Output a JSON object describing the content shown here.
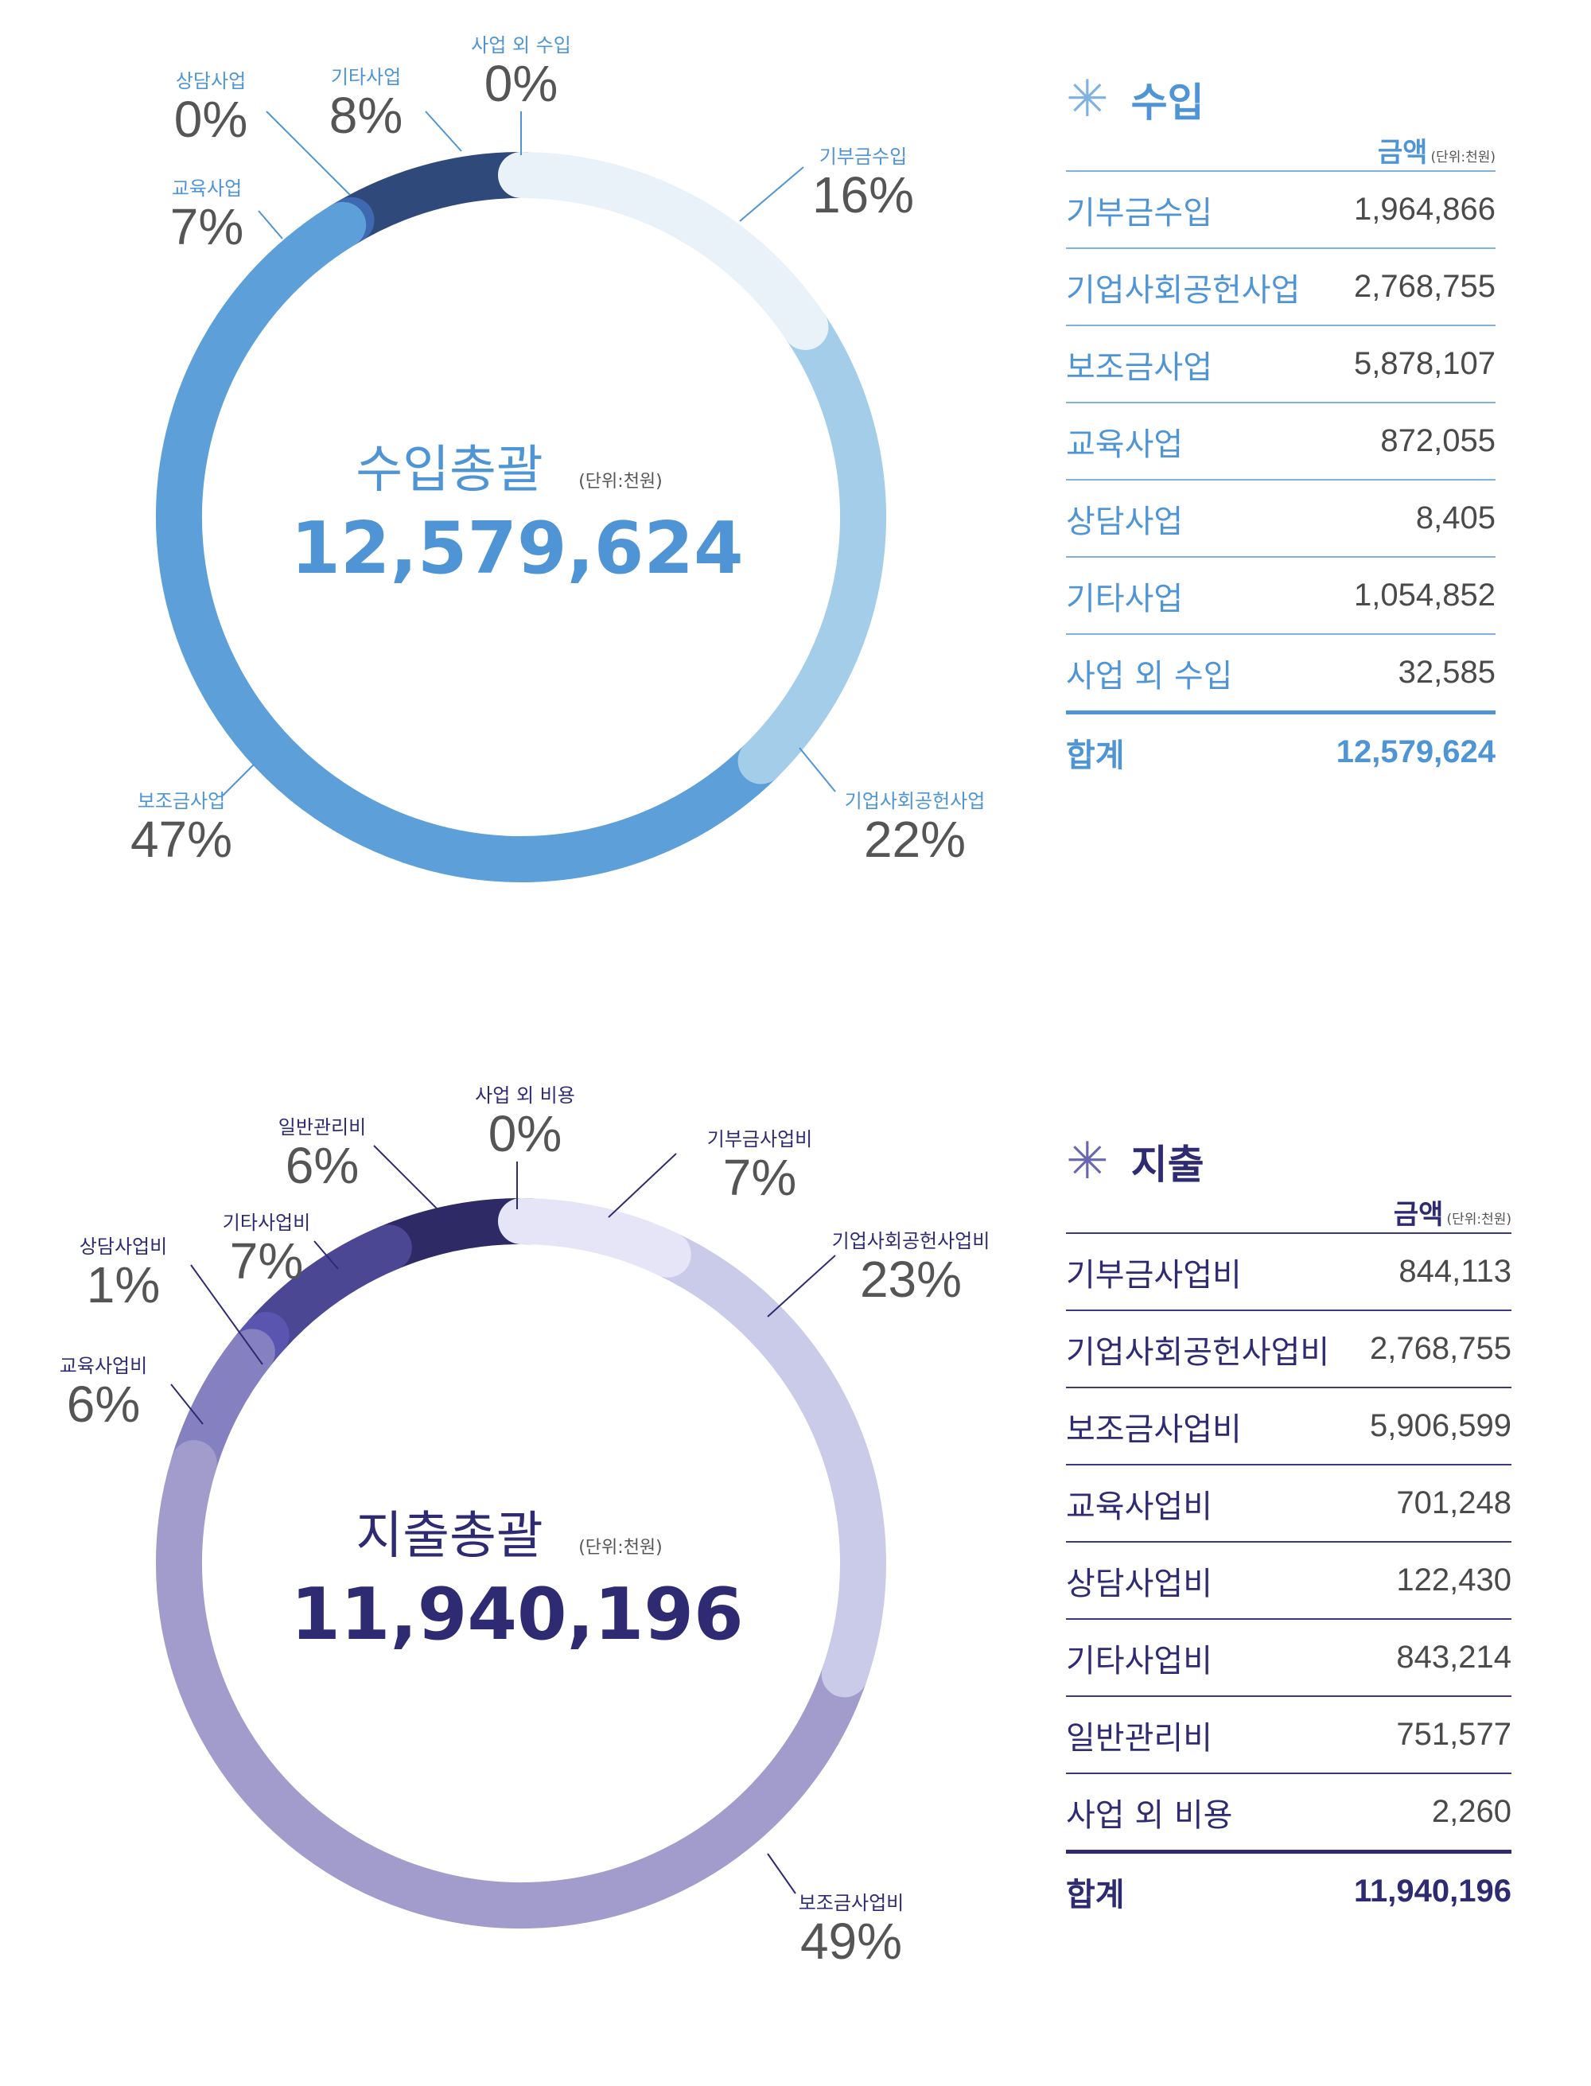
{
  "colors": {
    "income_accent": "#4f95d6",
    "expense_accent": "#2f2b73",
    "label_gray": "#555555"
  },
  "income": {
    "center_title": "수입총괄",
    "center_unit": "(단위:천원)",
    "center_total": "12,579,624",
    "table": {
      "title": "수입",
      "star_icon": "✳",
      "amount_header": "금액",
      "unit": "(단위:천원)",
      "rows": [
        {
          "label": "기부금수입",
          "value": "1,964,866"
        },
        {
          "label": "기업사회공헌사업",
          "value": "2,768,755"
        },
        {
          "label": "보조금사업",
          "value": "5,878,107"
        },
        {
          "label": "교육사업",
          "value": "872,055"
        },
        {
          "label": "상담사업",
          "value": "8,405"
        },
        {
          "label": "기타사업",
          "value": "1,054,852"
        },
        {
          "label": "사업 외 수입",
          "value": "32,585"
        }
      ],
      "total_label": "합계",
      "total_value": "12,579,624"
    }
  },
  "expense": {
    "center_title": "지출총괄",
    "center_unit": "(단위:천원)",
    "center_total": "11,940,196",
    "table": {
      "title": "지출",
      "star_icon": "✳",
      "amount_header": "금액",
      "unit": "(단위:천원)",
      "rows": [
        {
          "label": "기부금사업비",
          "value": "844,113"
        },
        {
          "label": "기업사회공헌사업비",
          "value": "2,768,755"
        },
        {
          "label": "보조금사업비",
          "value": "5,906,599"
        },
        {
          "label": "교육사업비",
          "value": "701,248"
        },
        {
          "label": "상담사업비",
          "value": "122,430"
        },
        {
          "label": "기타사업비",
          "value": "843,214"
        },
        {
          "label": "일반관리비",
          "value": "751,577"
        },
        {
          "label": "사업 외 비용",
          "value": "2,260"
        }
      ],
      "total_label": "합계",
      "total_value": "11,940,196"
    }
  },
  "chart_data": [
    {
      "type": "pie",
      "donut": true,
      "title": "수입총괄",
      "unit": "(단위:천원)",
      "total": 12579624,
      "categories": [
        "기부금수입",
        "기업사회공헌사업",
        "보조금사업",
        "교육사업",
        "상담사업",
        "기타사업",
        "사업 외 수입"
      ],
      "values": [
        1964866,
        2768755,
        5878107,
        872055,
        8405,
        1054852,
        32585
      ],
      "percent_labels": [
        "16%",
        "22%",
        "47%",
        "7%",
        "0%",
        "8%",
        "0%"
      ],
      "colors": [
        "#e9f2f9",
        "#a3cde8",
        "#5c9fd9",
        "#5c9fd9",
        "#3e68b0",
        "#2f4a7a",
        "#2a3e66"
      ]
    },
    {
      "type": "pie",
      "donut": true,
      "title": "지출총괄",
      "unit": "(단위:천원)",
      "total": 11940196,
      "categories": [
        "기부금사업비",
        "기업사회공헌사업비",
        "보조금사업비",
        "교육사업비",
        "상담사업비",
        "기타사업비",
        "일반관리비",
        "사업 외 비용"
      ],
      "values": [
        844113,
        2768755,
        5906599,
        701248,
        122430,
        843214,
        751577,
        2260
      ],
      "percent_labels": [
        "7%",
        "23%",
        "49%",
        "6%",
        "1%",
        "7%",
        "6%",
        "0%"
      ],
      "colors": [
        "#e5e5f7",
        "#cacae9",
        "#a19ccb",
        "#8580c0",
        "#5a56b0",
        "#4b4793",
        "#2d2a65",
        "#2a2860"
      ]
    }
  ]
}
